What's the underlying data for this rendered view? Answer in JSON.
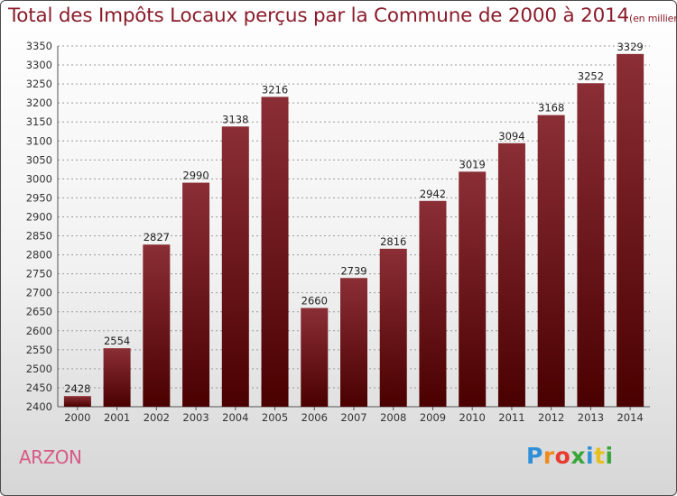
{
  "title": "Total des Impôts Locaux perçus par la Commune de 2000 à 2014",
  "subtitle": "(en milliers d'€)",
  "commune": "ARZON",
  "logo": {
    "letters": [
      "P",
      "r",
      "o",
      "x",
      "i",
      "t",
      "i"
    ],
    "colors": [
      "#2f8fd8",
      "#f08a1c",
      "#e63b2e",
      "#3aa63a",
      "#2f8fd8",
      "#e8c01f",
      "#3aa63a"
    ]
  },
  "colors": {
    "bar_top": "#8b2e36",
    "bar_bottom": "#4a0000",
    "title": "#8a1c2a"
  },
  "chart_data": {
    "type": "bar",
    "title": "Total des Impôts Locaux perçus par la Commune de 2000 à 2014",
    "xlabel": "",
    "ylabel": "",
    "categories": [
      "2000",
      "2001",
      "2002",
      "2003",
      "2004",
      "2005",
      "2006",
      "2007",
      "2008",
      "2009",
      "2010",
      "2011",
      "2012",
      "2013",
      "2014"
    ],
    "values": [
      2428,
      2554,
      2827,
      2990,
      3138,
      3216,
      2660,
      2739,
      2816,
      2942,
      3019,
      3094,
      3168,
      3252,
      3329
    ],
    "ylim": [
      2400,
      3350
    ],
    "yticks": [
      2400,
      2450,
      2500,
      2550,
      2600,
      2650,
      2700,
      2750,
      2800,
      2850,
      2900,
      2950,
      3000,
      3050,
      3100,
      3150,
      3200,
      3250,
      3300,
      3350
    ],
    "grid": true
  }
}
